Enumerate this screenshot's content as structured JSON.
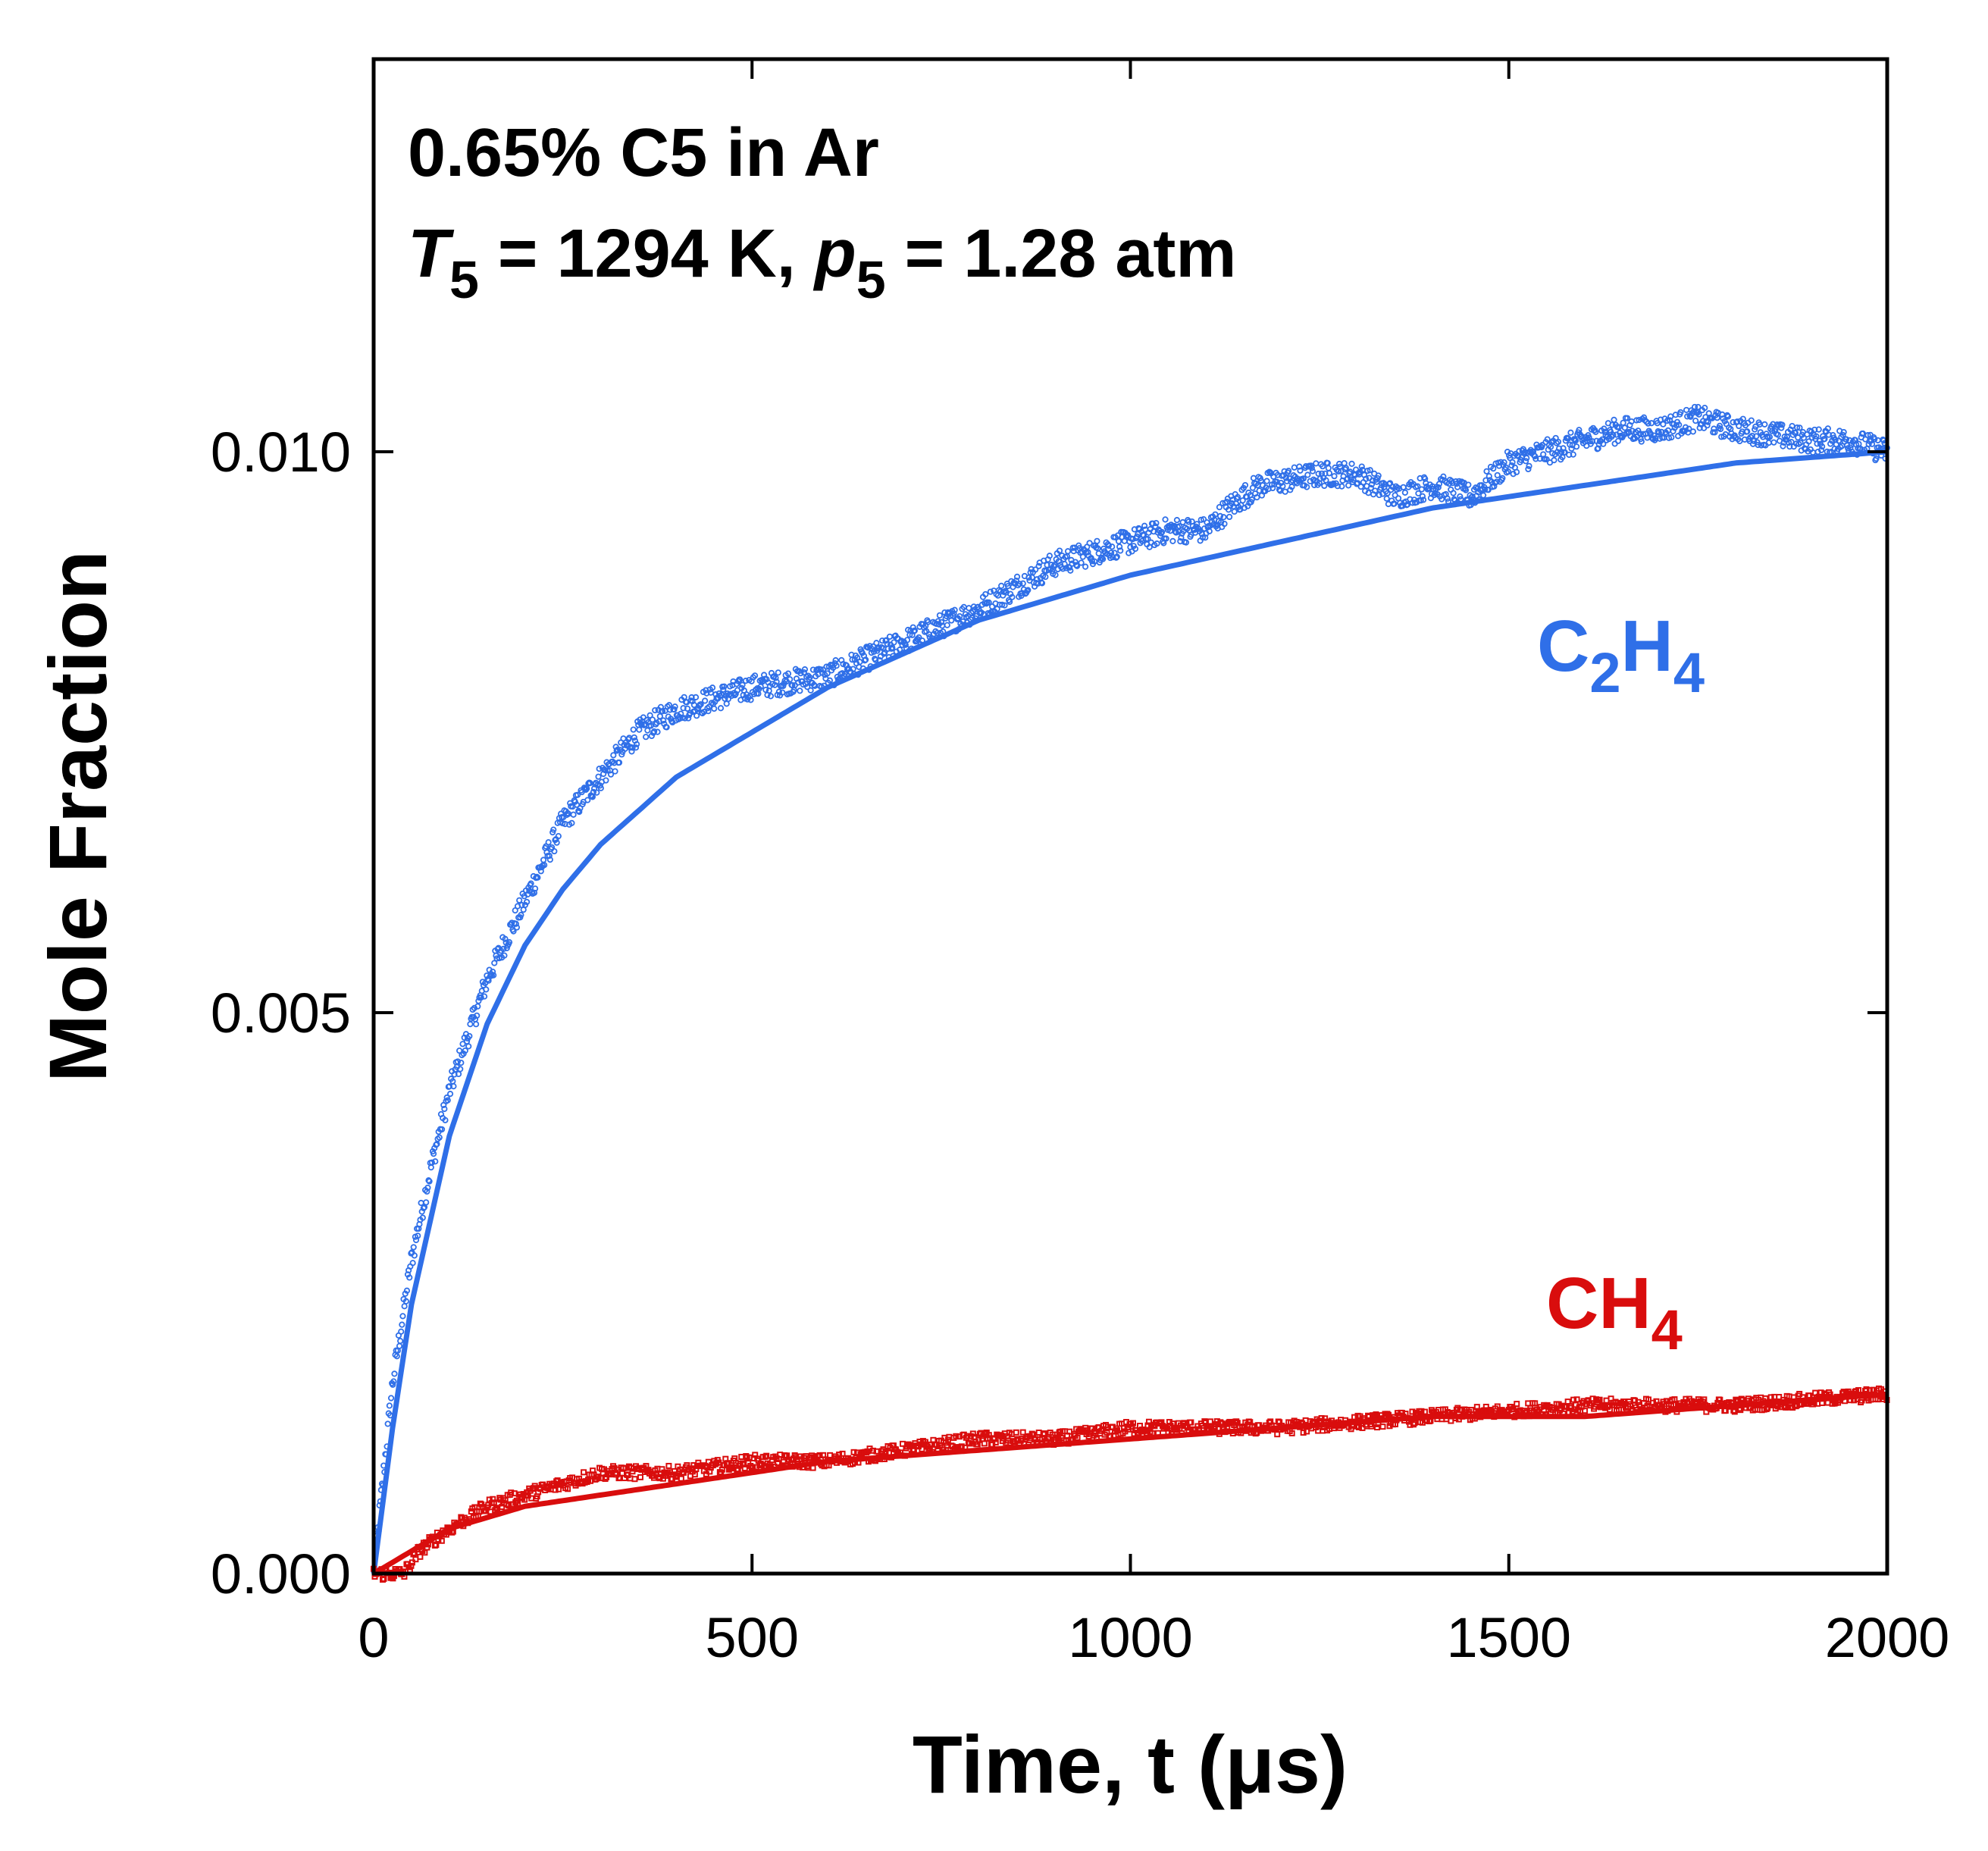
{
  "chart_data": {
    "type": "line",
    "title": "",
    "xlabel": "Time, t (μs)",
    "ylabel": "Mole Fraction",
    "xlim": [
      0,
      2000
    ],
    "ylim": [
      0,
      0.0135
    ],
    "grid": false,
    "x_ticks": [
      0,
      500,
      1000,
      1500,
      2000
    ],
    "x_tick_labels": [
      "0",
      "500",
      "1000",
      "1500",
      "2000"
    ],
    "y_ticks": [
      0,
      0.005,
      0.01
    ],
    "y_tick_labels": [
      "0.000",
      "0.005",
      "0.010"
    ],
    "annotation": {
      "line1": "0.65% C5 in Ar",
      "line2_T": "T",
      "line2_T_sub": "5",
      "line2_mid": " = 1294 K, ",
      "line2_p": "p",
      "line2_p_sub": "5",
      "line2_end": " = 1.28 atm"
    },
    "series": [
      {
        "name": "C2H4 measured",
        "label_main": "C",
        "label_sub1": "2",
        "label_mid": "H",
        "label_sub2": "4",
        "color": "#2f6fe8",
        "style": "markers",
        "x": [
          0,
          25,
          50,
          75,
          100,
          150,
          200,
          250,
          300,
          350,
          400,
          450,
          500,
          600,
          700,
          800,
          900,
          1000,
          1050,
          1100,
          1130,
          1170,
          1250,
          1300,
          1350,
          1400,
          1450,
          1500,
          1600,
          1650,
          1700,
          1750,
          1800,
          1900,
          1950,
          2000
        ],
        "values": [
          0.0,
          0.0017,
          0.0028,
          0.0036,
          0.0043,
          0.0053,
          0.006,
          0.0067,
          0.0071,
          0.0075,
          0.0077,
          0.0078,
          0.0079,
          0.008,
          0.0083,
          0.0086,
          0.009,
          0.0092,
          0.0093,
          0.0093,
          0.0095,
          0.0097,
          0.0098,
          0.0098,
          0.0096,
          0.0097,
          0.0096,
          0.0099,
          0.0101,
          0.0102,
          0.0102,
          0.0103,
          0.0102,
          0.0101,
          0.0101,
          0.01
        ]
      },
      {
        "name": "C2H4 model",
        "color": "#2f6fe8",
        "style": "line",
        "x": [
          0,
          25,
          50,
          100,
          150,
          200,
          250,
          300,
          400,
          500,
          600,
          700,
          800,
          900,
          1000,
          1200,
          1400,
          1600,
          1800,
          2000
        ],
        "values": [
          0.0,
          0.0013,
          0.0024,
          0.0039,
          0.0049,
          0.0056,
          0.0061,
          0.0065,
          0.0071,
          0.0075,
          0.0079,
          0.0082,
          0.0085,
          0.0087,
          0.0089,
          0.0092,
          0.0095,
          0.0097,
          0.0099,
          0.01
        ]
      },
      {
        "name": "CH4 measured",
        "label_main": "CH",
        "label_sub": "4",
        "color": "#d90d0d",
        "style": "markers",
        "x": [
          0,
          40,
          60,
          80,
          100,
          150,
          200,
          250,
          300,
          400,
          500,
          600,
          700,
          800,
          900,
          1000,
          1200,
          1400,
          1600,
          1800,
          2000
        ],
        "values": [
          0.0,
          0.0,
          0.0002,
          0.0003,
          0.0004,
          0.0006,
          0.0007,
          0.0008,
          0.0009,
          0.0009,
          0.001,
          0.001,
          0.0011,
          0.0012,
          0.0012,
          0.0013,
          0.0013,
          0.0014,
          0.0015,
          0.0015,
          0.0016
        ]
      },
      {
        "name": "CH4 model",
        "color": "#d90d0d",
        "style": "line",
        "x": [
          0,
          50,
          100,
          150,
          200,
          300,
          400,
          500,
          600,
          800,
          1000,
          1200,
          1400,
          1600,
          1800,
          2000
        ],
        "values": [
          0.0,
          0.0002,
          0.0004,
          0.0005,
          0.0006,
          0.0007,
          0.0008,
          0.0009,
          0.001,
          0.0011,
          0.0012,
          0.0013,
          0.0014,
          0.0014,
          0.0015,
          0.0016
        ]
      }
    ]
  }
}
